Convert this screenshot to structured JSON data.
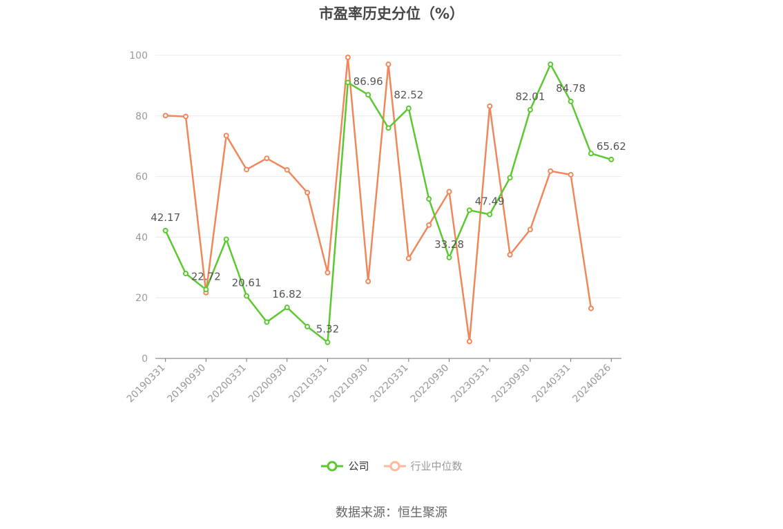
{
  "title": "市盈率历史分位（%）",
  "source": "数据来源：恒生聚源",
  "legend": [
    {
      "label": "公司",
      "color": "#5ac82e",
      "icon": "circle-line-icon",
      "active": true
    },
    {
      "label": "行业中位数",
      "color": "#ffb89a",
      "icon": "circle-line-icon",
      "active": false
    }
  ],
  "chart_data": {
    "type": "line",
    "title": "市盈率历史分位（%）",
    "ylim": [
      0,
      100
    ],
    "yticks": [
      "0",
      "20",
      "40",
      "60",
      "80",
      "100"
    ],
    "x": [
      "20190331",
      "20190630",
      "20190930",
      "20191231",
      "20200331",
      "20200630",
      "20200930",
      "20201231",
      "20210331",
      "20210630",
      "20210930",
      "20211231",
      "20220331",
      "20220630",
      "20220930",
      "20221231",
      "20230331",
      "20230630",
      "20230930",
      "20231231",
      "20240331",
      "20240630",
      "20240826"
    ],
    "xtick_labels": [
      "20190331",
      "20190930",
      "20200331",
      "20200930",
      "20210331",
      "20210930",
      "20220331",
      "20220930",
      "20230331",
      "20230930",
      "20240331",
      "20240826"
    ],
    "grid": true,
    "legend_position": "bottom",
    "series": [
      {
        "name": "公司",
        "color": "#5ac82e",
        "values": [
          42.17,
          28.0,
          22.72,
          39.3,
          20.61,
          12.0,
          16.82,
          10.5,
          5.32,
          91.0,
          86.96,
          76.0,
          82.52,
          52.6,
          33.28,
          48.9,
          47.49,
          59.6,
          82.01,
          97.0,
          84.78,
          67.6,
          65.62
        ],
        "labels": [
          "42.17",
          null,
          "22.72",
          null,
          "20.61",
          null,
          "16.82",
          null,
          "5.32",
          null,
          "86.96",
          null,
          "82.52",
          null,
          "33.28",
          null,
          "47.49",
          null,
          "82.01",
          null,
          "84.78",
          null,
          "65.62"
        ]
      },
      {
        "name": "行业中位数",
        "color": "#f0875a",
        "values": [
          80.1,
          79.8,
          21.7,
          73.5,
          62.3,
          66.0,
          62.2,
          54.7,
          28.3,
          99.3,
          25.4,
          97.0,
          33.0,
          44.0,
          55.0,
          5.6,
          83.2,
          34.2,
          42.5,
          61.8,
          60.6,
          16.5,
          null
        ]
      }
    ]
  }
}
